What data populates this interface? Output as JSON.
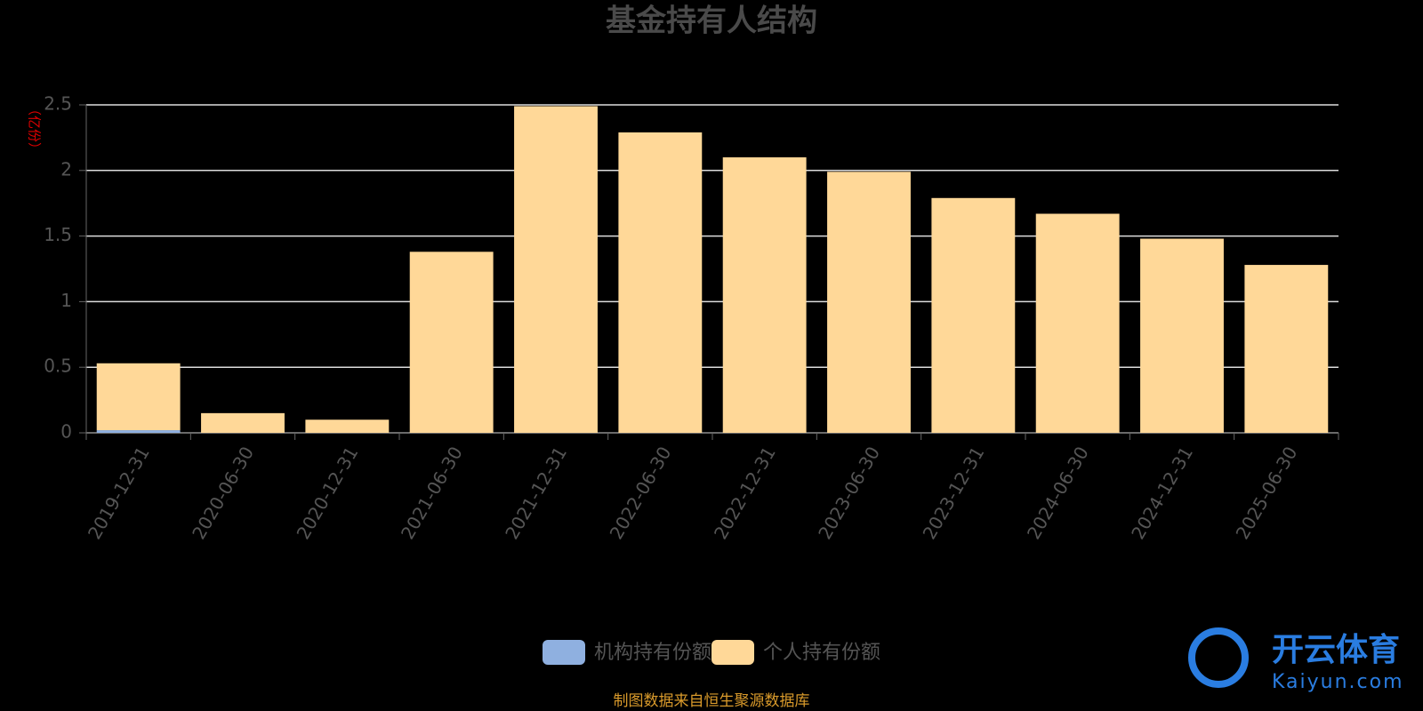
{
  "chart_data": {
    "type": "stacked_bar",
    "title": "基金持有人结构",
    "y_label": "（亿份）",
    "categories": [
      "2019-12-31",
      "2020-06-30",
      "2020-12-31",
      "2021-06-30",
      "2021-12-31",
      "2022-06-30",
      "2022-12-31",
      "2023-06-30",
      "2023-12-31",
      "2024-06-30",
      "2024-12-31",
      "2025-06-30"
    ],
    "series": [
      {
        "name": "机构持有份额",
        "color": "#8fb0e0",
        "values": [
          0.02,
          0,
          0,
          0,
          0,
          0,
          0,
          0,
          0,
          0,
          0,
          0
        ]
      },
      {
        "name": "个人持有份额",
        "color": "#ffd898",
        "values": [
          0.51,
          0.15,
          0.1,
          1.38,
          2.49,
          2.29,
          2.1,
          1.99,
          1.79,
          1.67,
          1.48,
          1.28
        ]
      }
    ],
    "ylim": [
      0,
      2.5
    ],
    "yticks": [
      0,
      0.5,
      1,
      1.5,
      2,
      2.5
    ],
    "grid": true,
    "legend": "bottom",
    "source": "制图数据来自恒生聚源数据库",
    "watermark": {
      "name": "开云体育",
      "url": "Kaiyun.com"
    }
  }
}
